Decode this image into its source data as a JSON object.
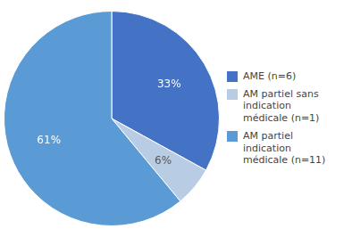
{
  "chart_data": {
    "type": "pie",
    "categories": [
      "AME (n=6)",
      "AM partiel sans\nindication\nmédicale (n=1)",
      "AM partiel\nindication\nmédicale (n=11)"
    ],
    "values": [
      33,
      6,
      61
    ],
    "value_labels": [
      "33%",
      "6%",
      "61%"
    ],
    "colors": [
      "#4472C4",
      "#b8cce4",
      "#5b9bd5"
    ],
    "data_labels": true,
    "legend": "right"
  }
}
